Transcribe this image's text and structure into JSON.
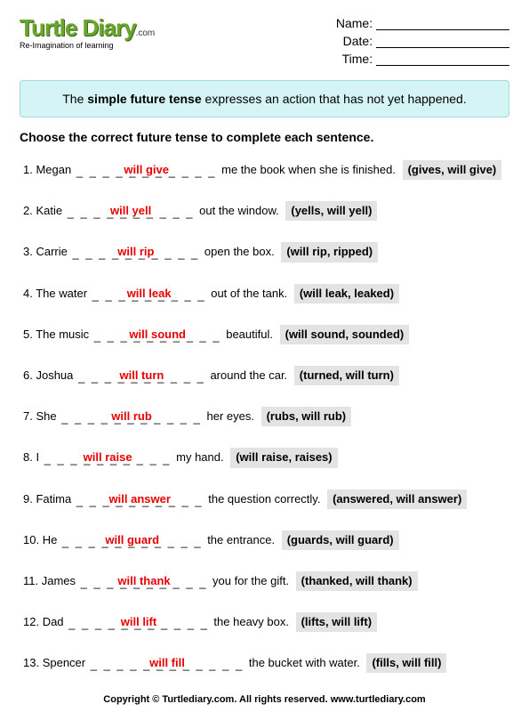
{
  "logo": {
    "main": "Turtle Diary",
    "suffix": ".com",
    "tagline": "Re-Imagination of learning"
  },
  "meta": {
    "name_label": "Name:",
    "date_label": "Date:",
    "time_label": "Time:"
  },
  "instruction": {
    "pre": "The ",
    "bold": "simple future tense",
    "post": " expresses an action that has not yet happened."
  },
  "prompt": "Choose the correct future tense to complete each sentence.",
  "questions": [
    {
      "num": "1.",
      "pre": "Megan ",
      "dashes": "_ _ _ _ _ _ _ _ _ _ _",
      "answer": "will give",
      "post": " me the book when she is finished.",
      "options": "(gives, will give)"
    },
    {
      "num": "2.",
      "pre": "Katie ",
      "dashes": "_ _ _ _ _ _ _ _ _ _",
      "answer": "will yell",
      "post": " out the window.",
      "options": "(yells, will yell)"
    },
    {
      "num": "3.",
      "pre": "Carrie ",
      "dashes": "_ _ _ _ _ _ _ _ _ _",
      "answer": "will rip",
      "post": " open the box.",
      "options": "(will rip, ripped)"
    },
    {
      "num": "4.",
      "pre": "The water ",
      "dashes": "_ _ _ _ _ _ _ _ _",
      "answer": "will leak",
      "post": " out of the tank.",
      "options": "(will leak, leaked)"
    },
    {
      "num": "5.",
      "pre": "The music ",
      "dashes": "_ _ _ _ _ _ _ _ _ _",
      "answer": "will sound",
      "post": " beautiful.",
      "options": "(will sound, sounded)"
    },
    {
      "num": "6.",
      "pre": "Joshua ",
      "dashes": "_ _ _ _ _ _ _ _ _ _",
      "answer": "will turn",
      "post": " around the car.",
      "options": "(turned, will turn)"
    },
    {
      "num": "7.",
      "pre": "She ",
      "dashes": "_ _ _ _ _ _ _ _ _ _ _",
      "answer": "will rub",
      "post": " her eyes.",
      "options": "(rubs, will rub)"
    },
    {
      "num": "8.",
      "pre": "I ",
      "dashes": "_ _ _ _ _ _ _ _ _ _",
      "answer": "will raise",
      "post": " my hand.",
      "options": "(will raise, raises)"
    },
    {
      "num": "9.",
      "pre": "Fatima ",
      "dashes": "_ _ _ _ _ _ _ _ _ _",
      "answer": "will answer",
      "post": " the question correctly.",
      "options": "(answered, will answer)"
    },
    {
      "num": "10.",
      "pre": "He ",
      "dashes": "_ _ _ _ _ _ _ _ _ _ _",
      "answer": "will guard",
      "post": " the entrance.",
      "options": "(guards, will guard)"
    },
    {
      "num": "11.",
      "pre": "James ",
      "dashes": "_ _ _ _ _ _ _ _ _ _",
      "answer": "will thank",
      "post": " you for the gift.",
      "options": "(thanked, will thank)"
    },
    {
      "num": "12.",
      "pre": "Dad ",
      "dashes": "_ _ _ _ _ _ _ _ _ _ _",
      "answer": "will lift",
      "post": " the heavy box.",
      "options": "(lifts, will lift)"
    },
    {
      "num": "13.",
      "pre": "Spencer ",
      "dashes": "_ _ _ _ _ _ _ _ _ _ _ _",
      "answer": "will fill",
      "post": " the bucket with water.",
      "options": "(fills, will fill)"
    }
  ],
  "footer": "Copyright © Turtlediary.com. All rights reserved.   www.turtlediary.com"
}
